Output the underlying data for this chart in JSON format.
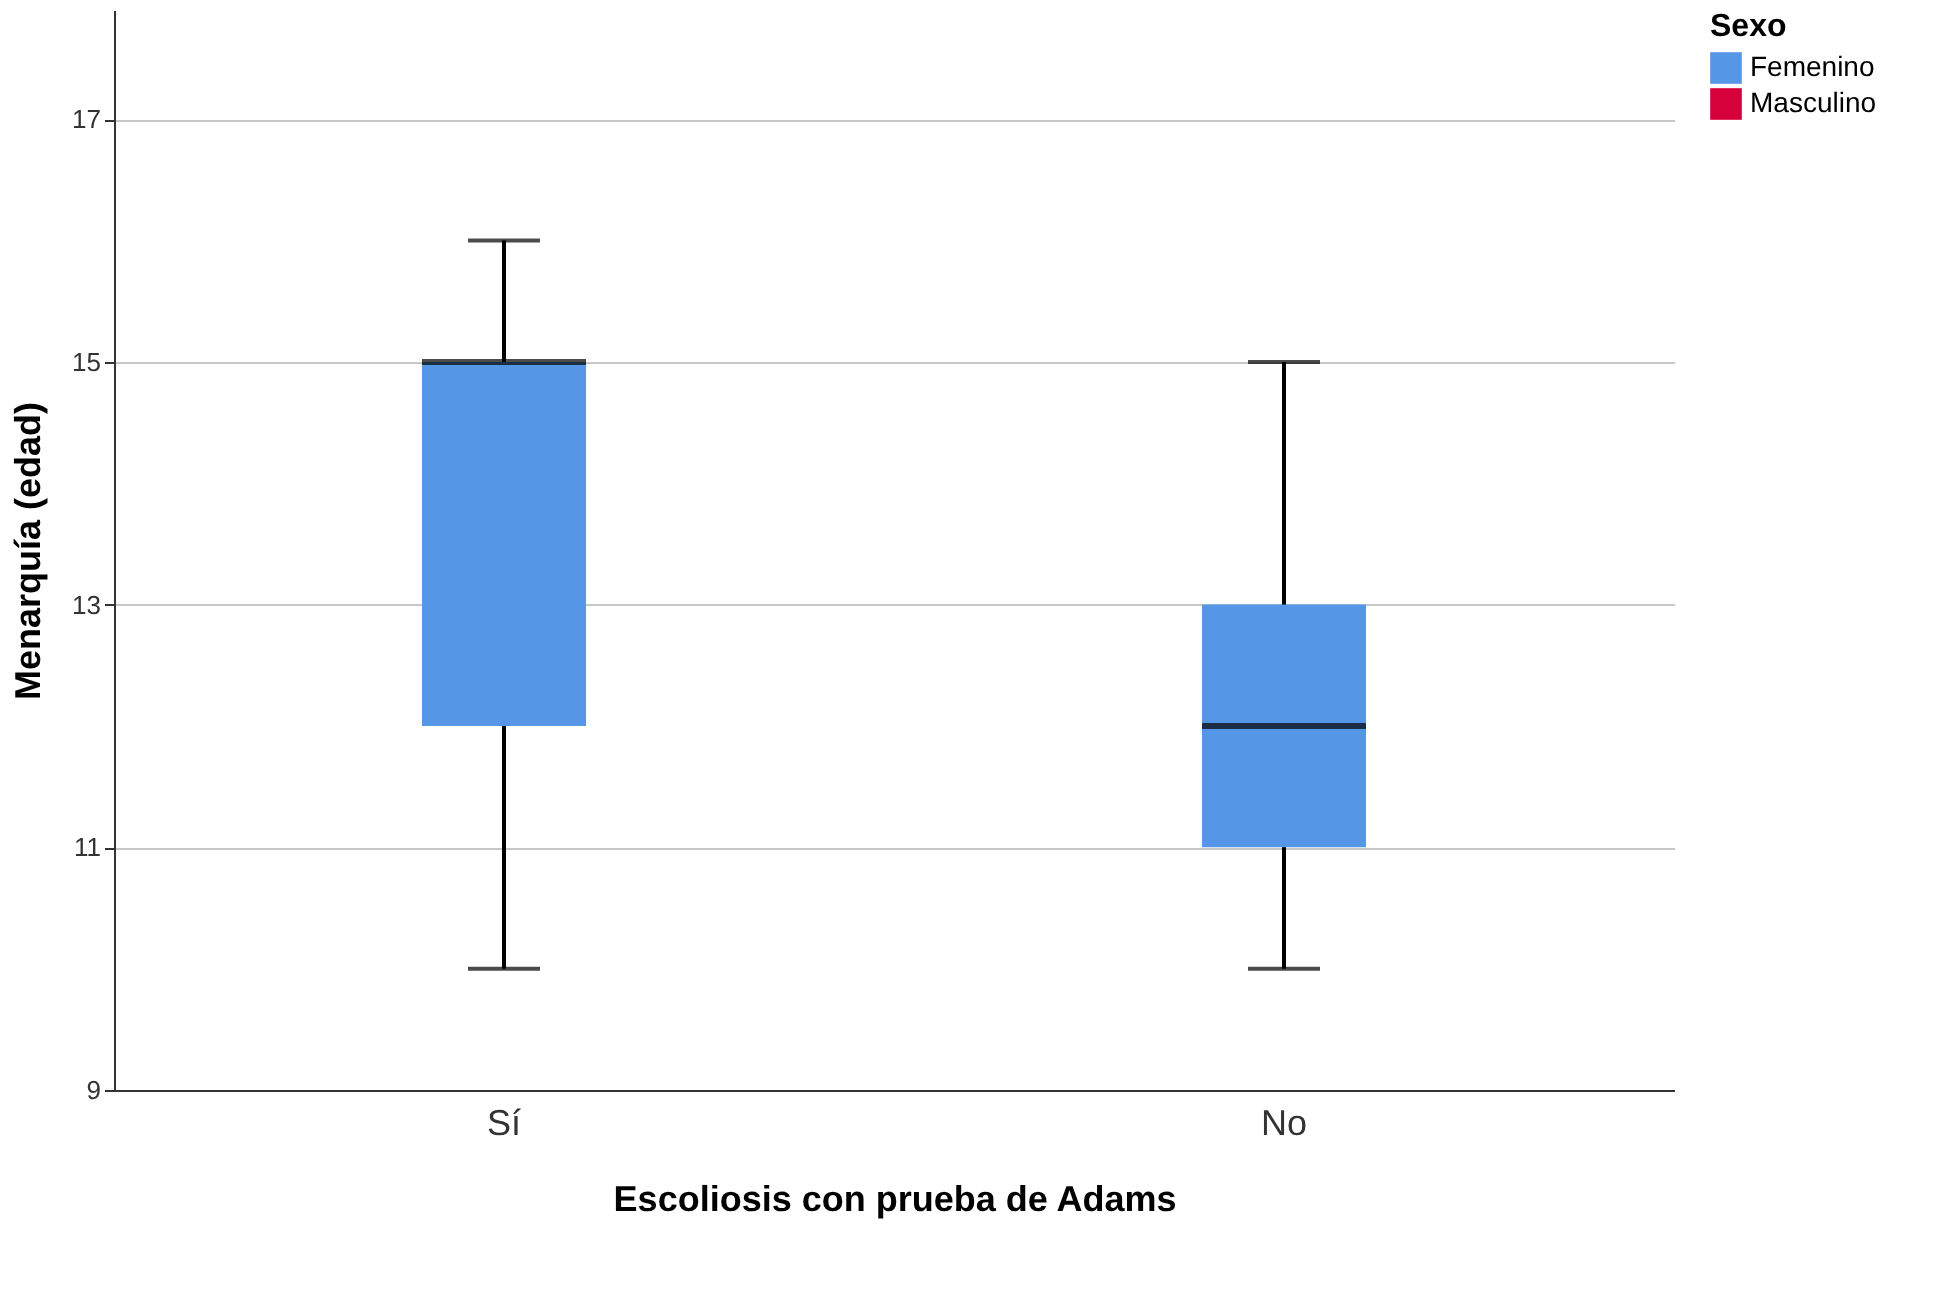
{
  "chart_data": {
    "type": "box",
    "xlabel": "Escoliosis con prueba de Adams",
    "ylabel": "Menarquía (edad)",
    "legend_title": "Sexo",
    "categories": [
      "Sí",
      "No"
    ],
    "series": [
      {
        "name": "Femenino",
        "color": "#5596e6",
        "boxes": [
          {
            "low": 10,
            "q1": 12,
            "median": 15,
            "q3": 15,
            "high": 16
          },
          {
            "low": 10,
            "q1": 11,
            "median": 12,
            "q3": 13,
            "high": 15
          }
        ]
      },
      {
        "name": "Masculino",
        "color": "#d6003b",
        "boxes": [
          null,
          null
        ]
      }
    ],
    "ylim": [
      9,
      17.9
    ],
    "yticks": [
      9,
      11,
      13,
      15,
      17
    ],
    "grid": "y",
    "legend": "top right"
  }
}
